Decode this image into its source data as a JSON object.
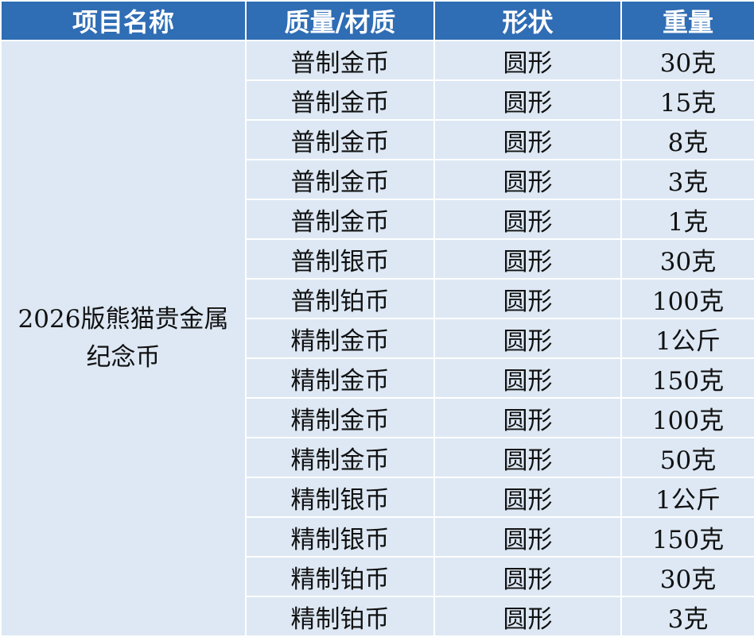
{
  "headers": [
    "项目名称",
    "质量/材质",
    "形状",
    "重量"
  ],
  "project_name": "2026版熊猫贵金属纪念币",
  "rows": [
    {
      "quality": "普制金币",
      "shape": "圆形",
      "weight": "30克"
    },
    {
      "quality": "普制金币",
      "shape": "圆形",
      "weight": "15克"
    },
    {
      "quality": "普制金币",
      "shape": "圆形",
      "weight": "8克"
    },
    {
      "quality": "普制金币",
      "shape": "圆形",
      "weight": "3克"
    },
    {
      "quality": "普制金币",
      "shape": "圆形",
      "weight": "1克"
    },
    {
      "quality": "普制银币",
      "shape": "圆形",
      "weight": "30克"
    },
    {
      "quality": "普制铂币",
      "shape": "圆形",
      "weight": "100克"
    },
    {
      "quality": "精制金币",
      "shape": "圆形",
      "weight": "1公斤"
    },
    {
      "quality": "精制金币",
      "shape": "圆形",
      "weight": "150克"
    },
    {
      "quality": "精制金币",
      "shape": "圆形",
      "weight": "100克"
    },
    {
      "quality": "精制金币",
      "shape": "圆形",
      "weight": "50克"
    },
    {
      "quality": "精制银币",
      "shape": "圆形",
      "weight": "1公斤"
    },
    {
      "quality": "精制银币",
      "shape": "圆形",
      "weight": "150克"
    },
    {
      "quality": "精制铂币",
      "shape": "圆形",
      "weight": "30克"
    },
    {
      "quality": "精制铂币",
      "shape": "圆形",
      "weight": "3克"
    }
  ],
  "colors": {
    "header_bg": "#2f6db4",
    "cell_bg": "#dde8f4"
  }
}
